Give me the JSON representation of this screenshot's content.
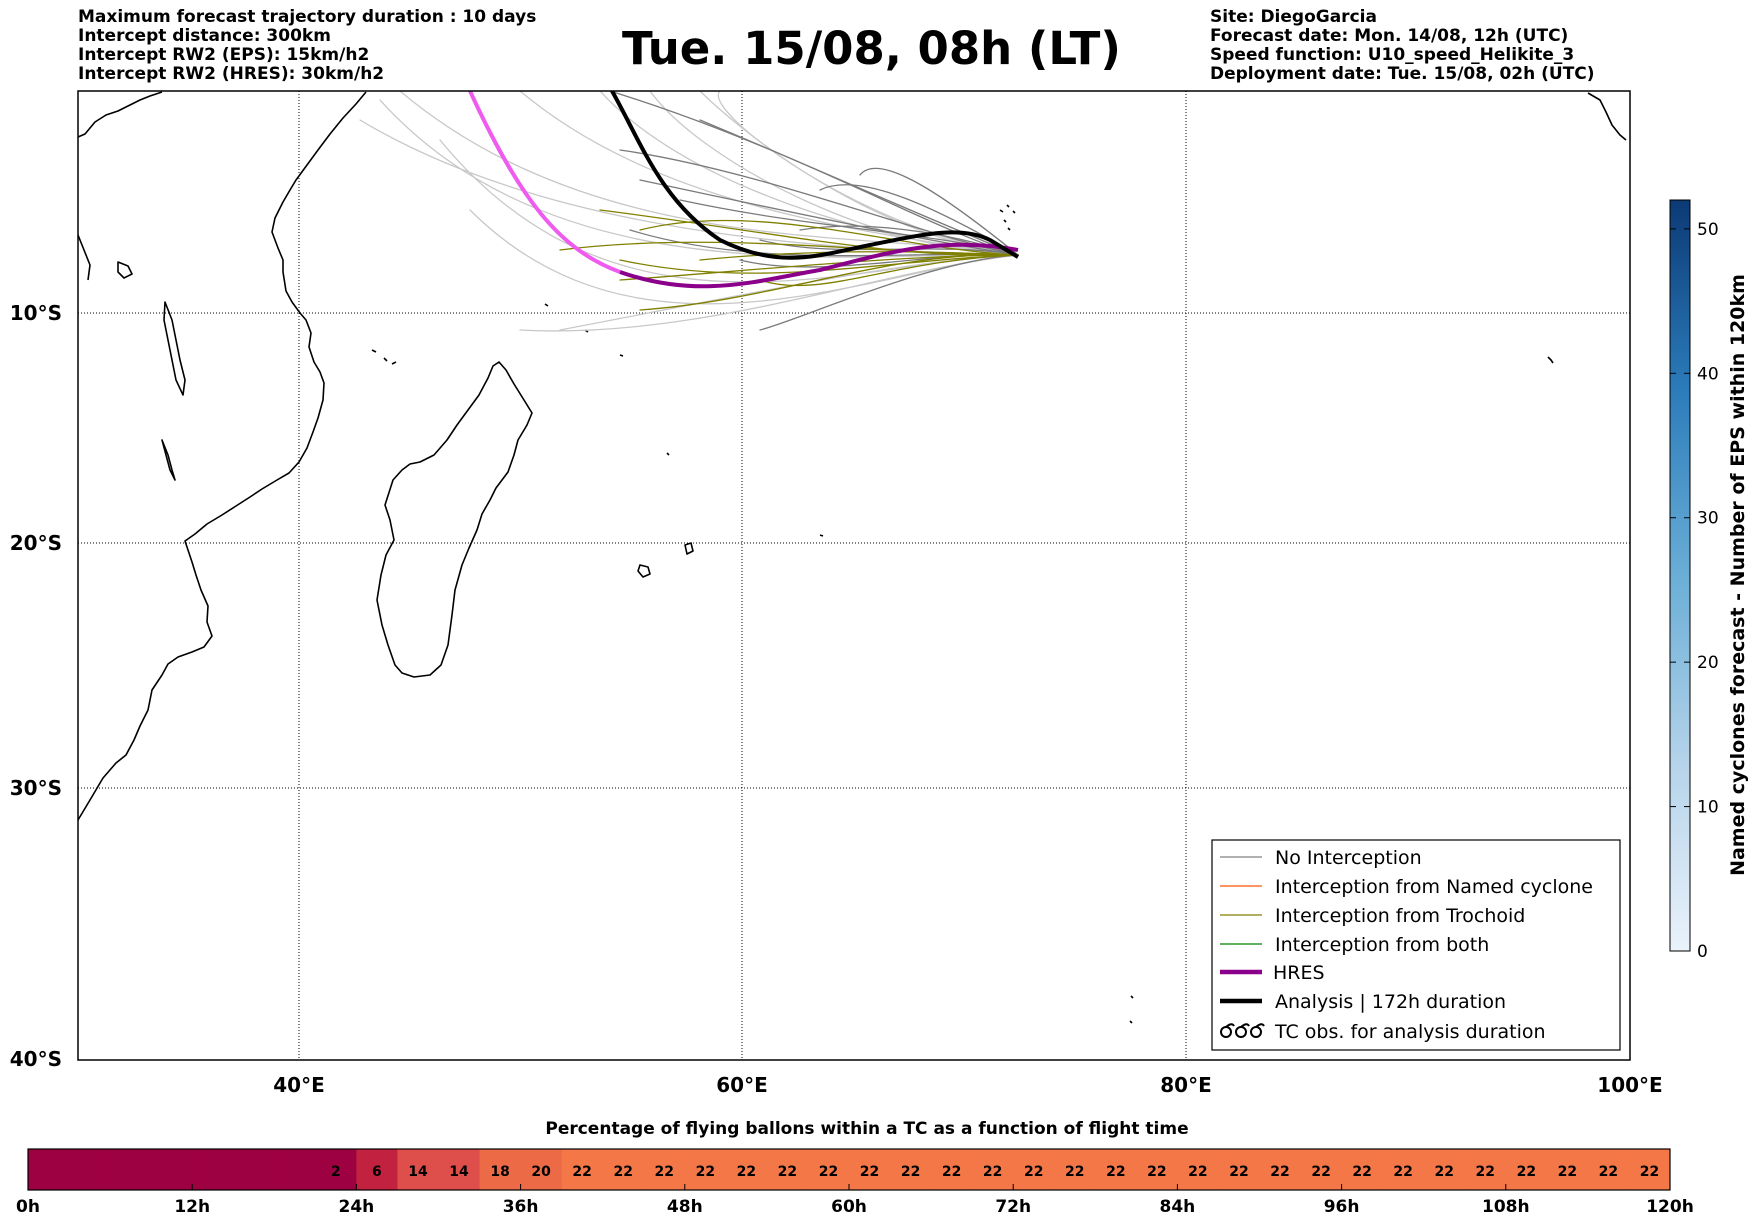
{
  "header": {
    "left_lines": [
      "Maximum forecast trajectory duration : 10 days",
      "Intercept distance: 300km",
      "Intercept RW2 (EPS):  15km/h2",
      "Intercept RW2 (HRES): 30km/h2"
    ],
    "title": "Tue. 15/08, 08h (LT)",
    "right_lines": [
      "Site: DiegoGarcia",
      "Forecast date: Mon. 14/08, 12h (UTC)",
      "Speed function: U10_speed_Helikite_3",
      "Deployment date: Tue. 15/08, 02h (UTC)"
    ]
  },
  "map": {
    "lon_ticks": [
      "40°E",
      "60°E",
      "80°E",
      "100°E"
    ],
    "lat_ticks": [
      "10°S",
      "20°S",
      "30°S",
      "40°S"
    ],
    "extent": {
      "lon": [
        30,
        100
      ],
      "lat": [
        -40,
        -0.5
      ]
    },
    "colors": {
      "no_interception": "#808080",
      "trochoid": "#808000",
      "named_cyclone": "#ff5500",
      "both": "#008000",
      "hres": "#8b008b",
      "hres_early": "#ee5bee",
      "analysis": "#000000"
    },
    "legend": [
      {
        "label": "No Interception",
        "key": "no_interception",
        "style": "thin"
      },
      {
        "label": "Interception from Named cyclone",
        "key": "named_cyclone",
        "style": "thin"
      },
      {
        "label": "Interception from Trochoid",
        "key": "trochoid",
        "style": "thin"
      },
      {
        "label": "Interception from both",
        "key": "both",
        "style": "thin"
      },
      {
        "label": "HRES",
        "key": "hres",
        "style": "thick"
      },
      {
        "label": "Analysis | 172h duration",
        "key": "analysis",
        "style": "thick"
      },
      {
        "label": "TC obs. for analysis duration",
        "key": "tc",
        "style": "symbol"
      }
    ]
  },
  "colorbar_right": {
    "label": "Named cyclones forecast - Number of EPS within 120km",
    "ticks": [
      "0",
      "10",
      "20",
      "30",
      "40",
      "50"
    ],
    "range": [
      0,
      52
    ]
  },
  "chart_data": {
    "type": "heatmap",
    "title": "Percentage of flying ballons within a TC as a function of flight time",
    "x_tick_labels": [
      "0h",
      "12h",
      "24h",
      "36h",
      "48h",
      "60h",
      "72h",
      "84h",
      "96h",
      "108h",
      "120h"
    ],
    "hours": [
      0,
      3,
      6,
      9,
      12,
      15,
      18,
      21,
      24,
      27,
      30,
      33,
      36,
      39,
      42,
      45,
      48,
      51,
      54,
      57,
      60,
      63,
      66,
      69,
      72,
      75,
      78,
      81,
      84,
      87,
      90,
      93,
      96,
      99,
      102,
      105,
      108,
      111,
      114,
      117
    ],
    "values": [
      0,
      0,
      0,
      0,
      0,
      0,
      0,
      2,
      6,
      14,
      14,
      18,
      20,
      22,
      22,
      22,
      22,
      22,
      22,
      22,
      22,
      22,
      22,
      22,
      22,
      22,
      22,
      22,
      22,
      22,
      22,
      22,
      22,
      22,
      22,
      22,
      22,
      22,
      22,
      22
    ]
  }
}
